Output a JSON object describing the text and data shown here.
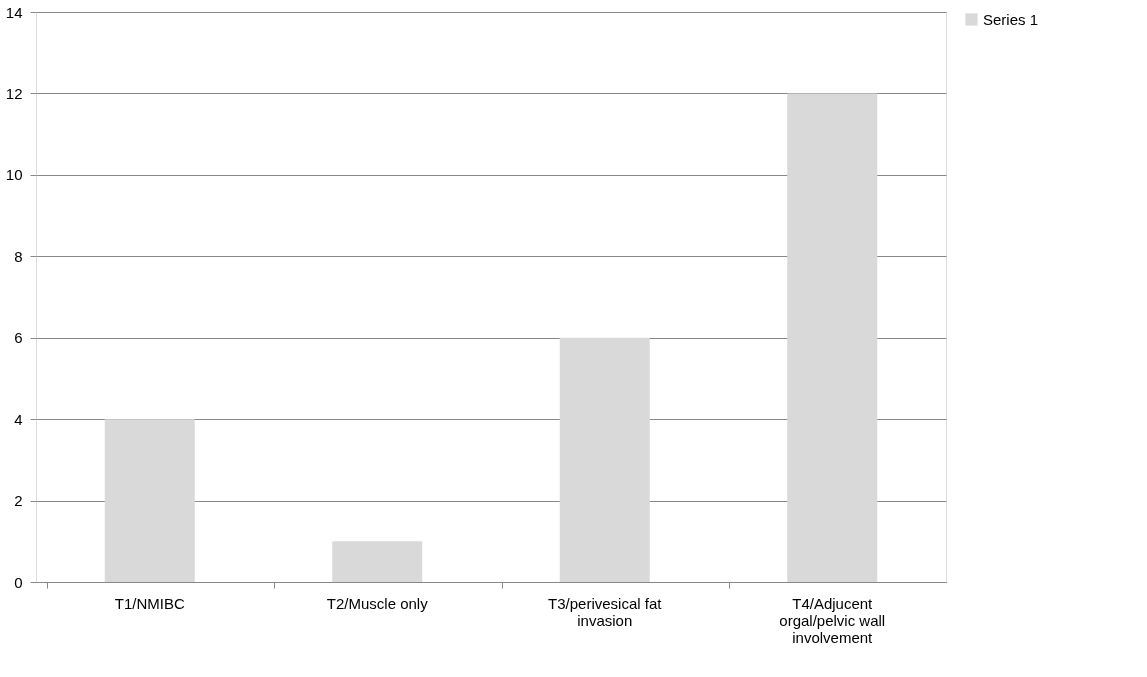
{
  "chart_data": {
    "type": "bar",
    "categories": [
      "T1/NMIBC",
      "T2/Muscle only",
      "T3/perivesical fat invasion",
      "T4/Adjucent orgal/pelvic wall involvement"
    ],
    "series": [
      {
        "name": "Series 1",
        "color": "#d9d9d9",
        "values": [
          4,
          1,
          6,
          12
        ]
      }
    ],
    "ylim": [
      0,
      14
    ],
    "yticks": [
      0,
      2,
      4,
      6,
      8,
      10,
      12,
      14
    ],
    "grid": "y",
    "legend": "right"
  }
}
